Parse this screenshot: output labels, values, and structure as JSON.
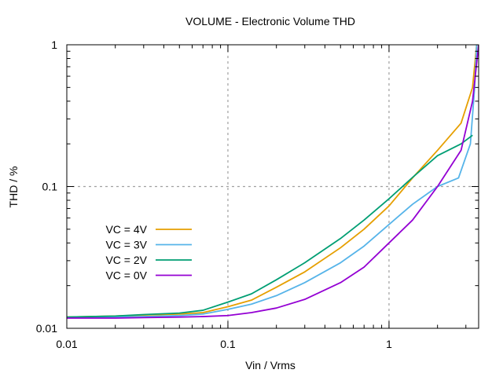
{
  "chart_data": {
    "type": "line",
    "title": "VOLUME - Electronic Volume THD",
    "xlabel": "Vin / Vrms",
    "ylabel": "THD / %",
    "xscale": "log",
    "yscale": "log",
    "xlim": [
      0.01,
      3.6
    ],
    "ylim": [
      0.01,
      1
    ],
    "xticks": [
      {
        "value": 0.01,
        "label": "0.01"
      },
      {
        "value": 0.1,
        "label": "0.1"
      },
      {
        "value": 1,
        "label": "1"
      }
    ],
    "yticks": [
      {
        "value": 0.01,
        "label": "0.01"
      },
      {
        "value": 0.1,
        "label": "0.1"
      },
      {
        "value": 1,
        "label": "1"
      }
    ],
    "grid": true,
    "legend_position": "center-left",
    "series": [
      {
        "name": "VC = 4V",
        "color": "#e69f00",
        "x": [
          0.01,
          0.02,
          0.03,
          0.05,
          0.07,
          0.1,
          0.14,
          0.2,
          0.3,
          0.5,
          0.7,
          1.0,
          1.4,
          2.0,
          2.8,
          3.3,
          3.5
        ],
        "y": [
          0.012,
          0.0122,
          0.0124,
          0.0126,
          0.0129,
          0.0142,
          0.0158,
          0.0195,
          0.025,
          0.037,
          0.05,
          0.073,
          0.115,
          0.18,
          0.28,
          0.5,
          1.0
        ]
      },
      {
        "name": "VC = 3V",
        "color": "#56b4e9",
        "x": [
          0.01,
          0.02,
          0.03,
          0.05,
          0.07,
          0.1,
          0.14,
          0.2,
          0.3,
          0.5,
          0.7,
          1.0,
          1.4,
          2.0,
          2.7,
          3.2,
          3.4,
          3.5
        ],
        "y": [
          0.0119,
          0.012,
          0.0121,
          0.0123,
          0.0126,
          0.0136,
          0.0148,
          0.017,
          0.021,
          0.029,
          0.038,
          0.054,
          0.075,
          0.1,
          0.115,
          0.2,
          0.5,
          1.0
        ]
      },
      {
        "name": "VC = 2V",
        "color": "#009e73",
        "x": [
          0.01,
          0.02,
          0.03,
          0.05,
          0.07,
          0.1,
          0.14,
          0.2,
          0.3,
          0.5,
          0.7,
          1.0,
          1.4,
          2.0,
          2.8,
          3.3
        ],
        "y": [
          0.012,
          0.0122,
          0.0125,
          0.0128,
          0.0134,
          0.0153,
          0.0175,
          0.022,
          0.029,
          0.043,
          0.058,
          0.082,
          0.116,
          0.165,
          0.2,
          0.23
        ]
      },
      {
        "name": "VC = 0V",
        "color": "#9400d3",
        "x": [
          0.01,
          0.02,
          0.03,
          0.05,
          0.07,
          0.1,
          0.14,
          0.2,
          0.3,
          0.5,
          0.7,
          1.0,
          1.4,
          2.0,
          2.8,
          3.3,
          3.6
        ],
        "y": [
          0.0118,
          0.0118,
          0.0119,
          0.012,
          0.0121,
          0.0123,
          0.0129,
          0.0139,
          0.016,
          0.021,
          0.027,
          0.04,
          0.058,
          0.1,
          0.18,
          0.4,
          1.0
        ]
      }
    ]
  }
}
